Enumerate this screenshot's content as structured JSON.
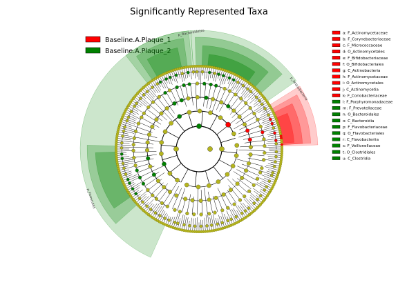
{
  "title": "Significantly Represented Taxa",
  "colors": {
    "group1": "#ff0000",
    "group2": "#008000",
    "neutral": "#b5b51e",
    "ring": "#000000"
  },
  "groups": [
    {
      "label": "Baseline.A.Plaque_1",
      "color": "#ff0000"
    },
    {
      "label": "Baseline.A.Plaque_2",
      "color": "#008000"
    }
  ],
  "key": [
    {
      "text": "a: F_Actinomycetaceae",
      "group": 1
    },
    {
      "text": "b: F_Corynebacteriaceae",
      "group": 1
    },
    {
      "text": "c: F_Micrococcaceae",
      "group": 1
    },
    {
      "text": "d: O_Actinomycetales",
      "group": 1
    },
    {
      "text": "e: F_Bifidobacteriaceae",
      "group": 1
    },
    {
      "text": "f: O_Bifidobacteriales",
      "group": 1
    },
    {
      "text": "g: C_Actinobacteria",
      "group": 1
    },
    {
      "text": "h: F_Actinomycetaceae",
      "group": 1
    },
    {
      "text": "i: O_Actinomycetales",
      "group": 1
    },
    {
      "text": "j: C_Actinomycetia",
      "group": 1
    },
    {
      "text": "k: F_Coriobacteriaceae",
      "group": 1
    },
    {
      "text": "l: F_Porphyromonadaceae",
      "group": 2
    },
    {
      "text": "m: F_Prevotellaceae",
      "group": 2
    },
    {
      "text": "n: O_Bacteroidales",
      "group": 2
    },
    {
      "text": "o: C_Bacteroidia",
      "group": 2
    },
    {
      "text": "p: F_Flavobacteriaceae",
      "group": 2
    },
    {
      "text": "q: O_Flavobacteriales",
      "group": 2
    },
    {
      "text": "r: C_Flavobacteriia",
      "group": 2
    },
    {
      "text": "s: F_Veillonellaceae",
      "group": 2
    },
    {
      "text": "t: O_Clostridiales",
      "group": 2
    },
    {
      "text": "u: C_Clostridia",
      "group": 2
    }
  ],
  "clades": [
    {
      "label": "p_Bacteroidetes",
      "group": 2
    },
    {
      "label": "p_Actinobacteria",
      "group": 1
    },
    {
      "label": "p_Firmicutes",
      "group": 2
    }
  ]
}
